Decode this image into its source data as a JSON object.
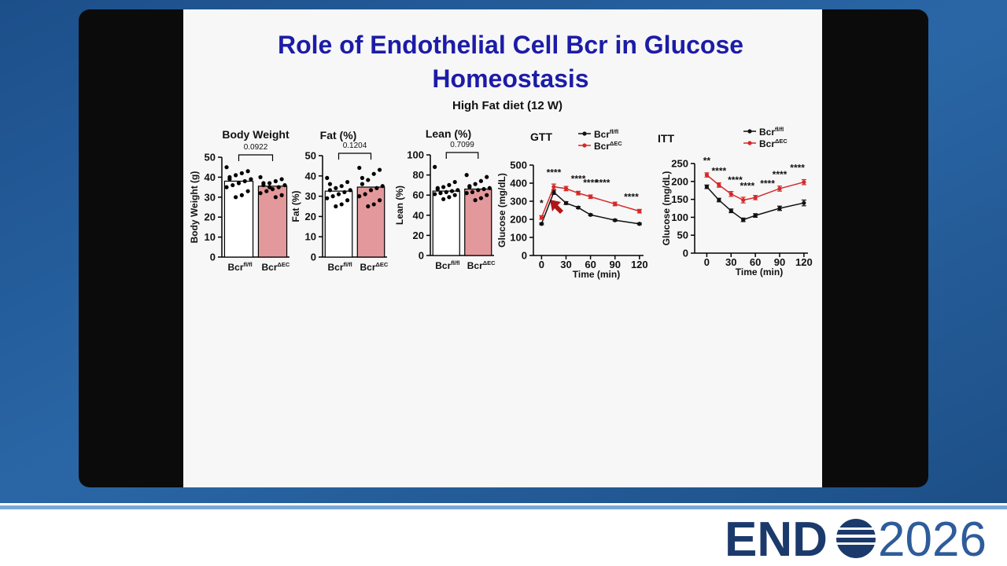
{
  "slide": {
    "title_line1": "Role of Endothelial Cell Bcr in Glucose",
    "title_line2": "Homeostasis",
    "subtitle": "High Fat diet (12 W)"
  },
  "chart_data": [
    {
      "type": "bar",
      "title": "Body Weight",
      "y_label": "Body Weight (g)",
      "categories": [
        "Bcr",
        "Bcr"
      ],
      "category_superscripts": [
        "fl/fl",
        "ΔEC"
      ],
      "values": [
        38,
        35.5
      ],
      "colors": [
        "#ffffff",
        "#e3999b"
      ],
      "points": [
        [
          45,
          43,
          42,
          41,
          40,
          39,
          38,
          37,
          36,
          35,
          33,
          31,
          30,
          39
        ],
        [
          40,
          39,
          38,
          37,
          36,
          36,
          35,
          34,
          33,
          32,
          31,
          30,
          35,
          37
        ]
      ],
      "p_value": 0.0922,
      "ylim": [
        0,
        50
      ],
      "yticks": [
        0,
        10,
        20,
        30,
        40,
        50
      ]
    },
    {
      "type": "bar",
      "title": "Fat (%)",
      "y_label": "Fat (%)",
      "categories": [
        "Bcr",
        "Bcr"
      ],
      "category_superscripts": [
        "fl/fl",
        "ΔEC"
      ],
      "values": [
        32.5,
        34.5
      ],
      "colors": [
        "#ffffff",
        "#e3999b"
      ],
      "points": [
        [
          39,
          37,
          35,
          34,
          33,
          33,
          32,
          31,
          30,
          29,
          28,
          26,
          25,
          36
        ],
        [
          44,
          43,
          41,
          38,
          36,
          35,
          34,
          33,
          31,
          30,
          28,
          26,
          25,
          39
        ]
      ],
      "p_value": 0.1204,
      "ylim": [
        0,
        50
      ],
      "yticks": [
        0,
        10,
        20,
        30,
        40,
        50
      ]
    },
    {
      "type": "bar",
      "title": "Lean (%)",
      "y_label": "Lean (%)",
      "categories": [
        "Bcr",
        "Bcr"
      ],
      "category_superscripts": [
        "fl/fl",
        "ΔEC"
      ],
      "values": [
        64,
        66
      ],
      "colors": [
        "#ffffff",
        "#e3999b"
      ],
      "points": [
        [
          88,
          73,
          70,
          68,
          66,
          65,
          64,
          63,
          62,
          61,
          60,
          58,
          56,
          67
        ],
        [
          80,
          78,
          74,
          71,
          69,
          67,
          66,
          65,
          63,
          62,
          60,
          57,
          55,
          68
        ]
      ],
      "p_value": 0.7099,
      "ylim": [
        0,
        100
      ],
      "yticks": [
        0,
        20,
        40,
        60,
        80,
        100
      ]
    },
    {
      "type": "line",
      "title": "GTT",
      "x_label": "Time (min)",
      "y_label": "Glucose (mg/dL)",
      "x": [
        0,
        15,
        30,
        45,
        60,
        90,
        120
      ],
      "series": [
        {
          "name": "Bcr",
          "name_sup": "fl/fl",
          "color": "#111111",
          "values": [
            175,
            350,
            290,
            265,
            225,
            195,
            175
          ],
          "errors": [
            5,
            12,
            8,
            6,
            5,
            5,
            5
          ]
        },
        {
          "name": "Bcr",
          "name_sup": "ΔEC",
          "color": "#d62828",
          "values": [
            210,
            380,
            370,
            345,
            325,
            285,
            245
          ],
          "errors": [
            10,
            15,
            12,
            10,
            10,
            10,
            10
          ]
        }
      ],
      "annotations": [
        {
          "x": 0,
          "text": "*"
        },
        {
          "x": 15,
          "text": "****"
        },
        {
          "x": 45,
          "text": "****"
        },
        {
          "x": 60,
          "text": "****"
        },
        {
          "x": 75,
          "text": "****"
        },
        {
          "x": 110,
          "text": "****"
        }
      ],
      "xlim": [
        -10,
        125
      ],
      "xticks": [
        0,
        30,
        60,
        90,
        120
      ],
      "ylim": [
        0,
        500
      ],
      "yticks": [
        0,
        100,
        200,
        300,
        400,
        500
      ]
    },
    {
      "type": "line",
      "title": "ITT",
      "x_label": "Time (min)",
      "y_label": "Glucose (mg/dL)",
      "x": [
        0,
        15,
        30,
        45,
        60,
        90,
        120
      ],
      "series": [
        {
          "name": "Bcr",
          "name_sup": "fl/fl",
          "color": "#111111",
          "values": [
            185,
            148,
            118,
            93,
            105,
            125,
            140
          ],
          "errors": [
            5,
            5,
            5,
            5,
            5,
            6,
            8
          ]
        },
        {
          "name": "Bcr",
          "name_sup": "ΔEC",
          "color": "#d62828",
          "values": [
            218,
            190,
            165,
            148,
            155,
            180,
            198
          ],
          "errors": [
            6,
            6,
            7,
            8,
            6,
            7,
            7
          ]
        }
      ],
      "annotations": [
        {
          "x": 0,
          "text": "**"
        },
        {
          "x": 15,
          "text": "****"
        },
        {
          "x": 35,
          "text": "****"
        },
        {
          "x": 50,
          "text": "****"
        },
        {
          "x": 75,
          "text": "****"
        },
        {
          "x": 90,
          "text": "****"
        },
        {
          "x": 112,
          "text": "****"
        }
      ],
      "xlim": [
        -15,
        125
      ],
      "xticks": [
        0,
        30,
        60,
        90,
        120
      ],
      "ylim": [
        0,
        250
      ],
      "yticks": [
        0,
        50,
        100,
        150,
        200,
        250
      ]
    }
  ],
  "logo": {
    "left": "END",
    "right": "2026"
  }
}
